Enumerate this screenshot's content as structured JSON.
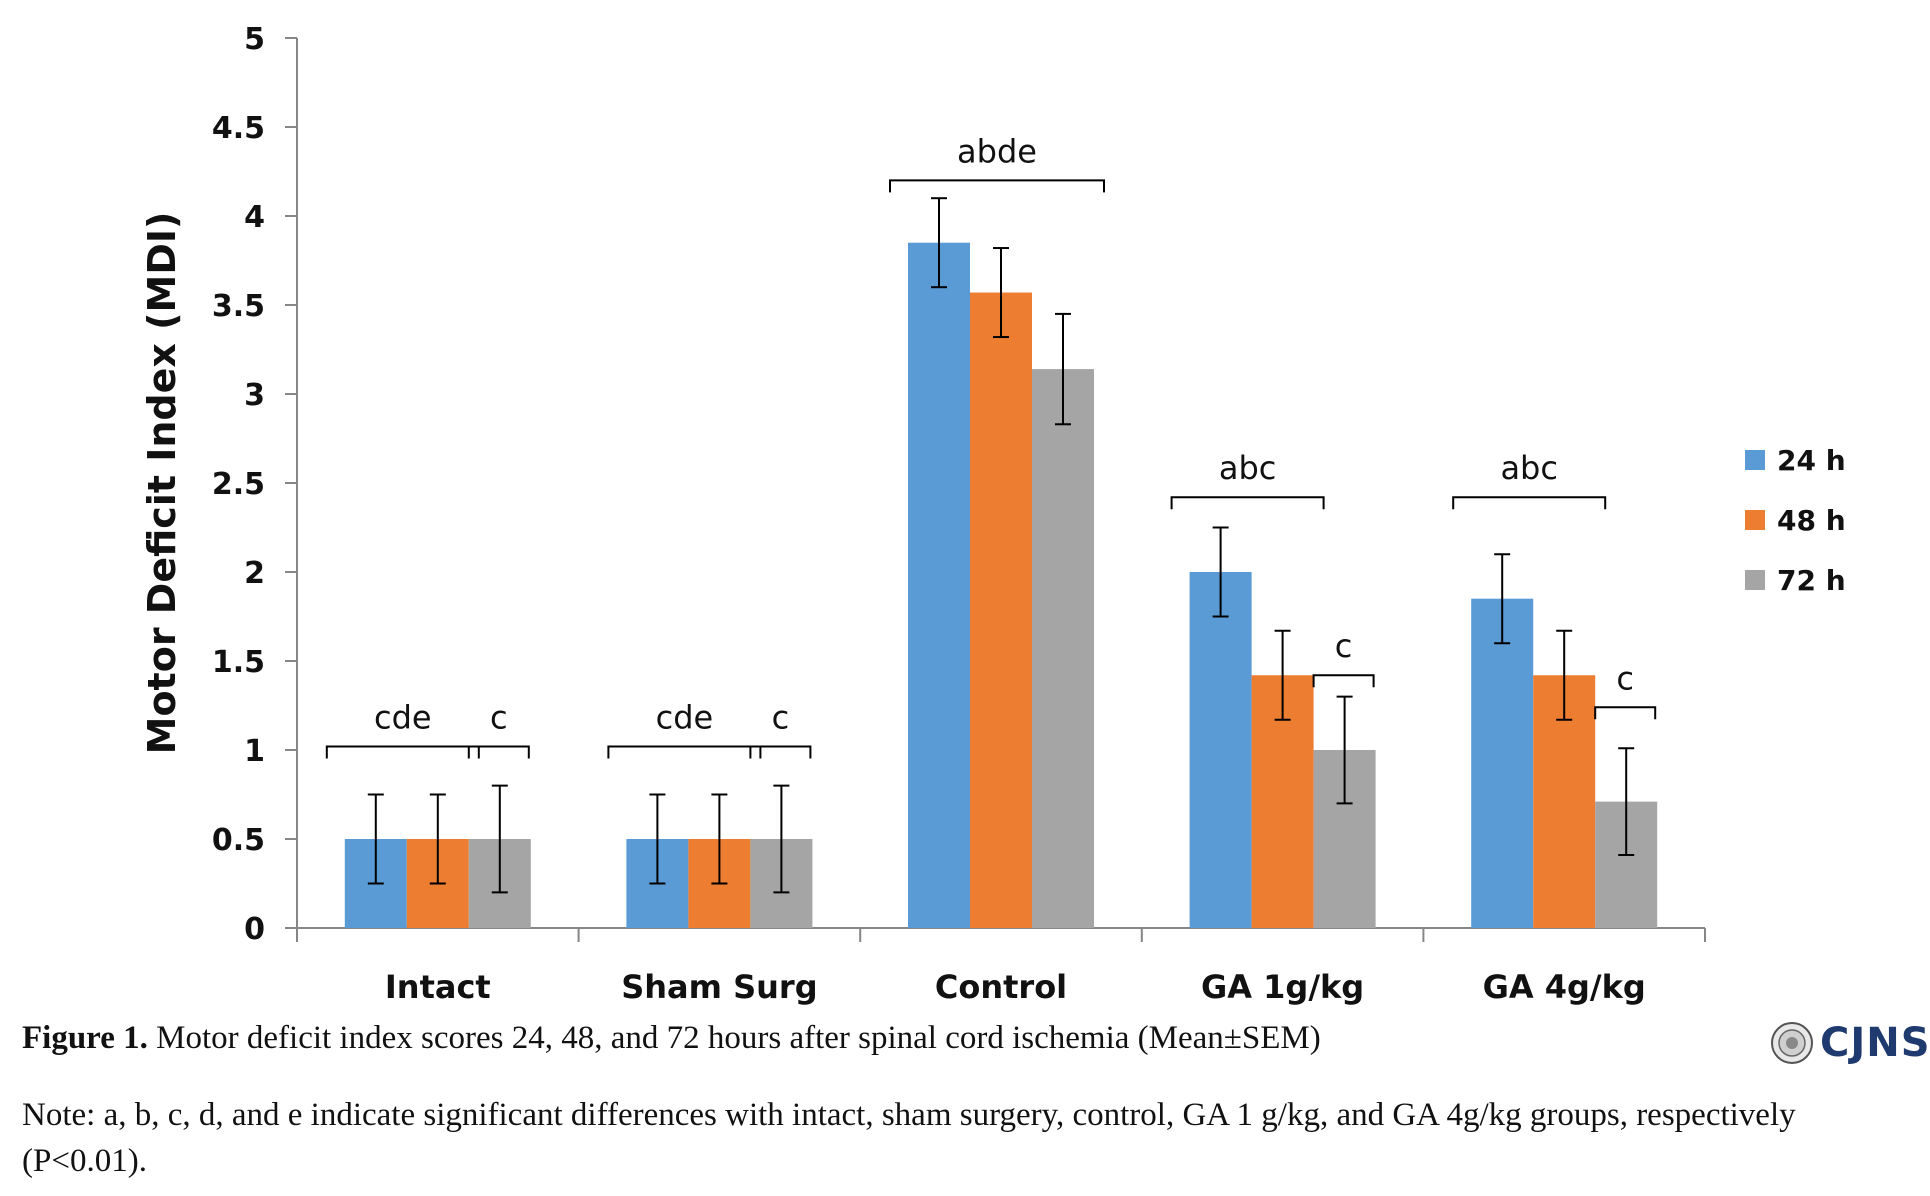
{
  "chart_data": {
    "type": "bar",
    "title": "",
    "xlabel": "",
    "ylabel": "Motor Deficit Index (MDI)",
    "ylim": [
      0,
      5
    ],
    "yticks": [
      "0",
      "0.5",
      "1",
      "1.5",
      "2",
      "2.5",
      "3",
      "3.5",
      "4",
      "4.5",
      "5"
    ],
    "grid": false,
    "legend_position": "right",
    "categories": [
      "Intact",
      "Sham Surg",
      "Control",
      "GA 1g/kg",
      "GA 4g/kg"
    ],
    "series": [
      {
        "name": "24 h",
        "color": "#5b9bd5",
        "values": [
          0.5,
          0.5,
          3.85,
          2.0,
          1.85
        ],
        "errors": [
          0.25,
          0.25,
          0.25,
          0.25,
          0.25
        ]
      },
      {
        "name": "48 h",
        "color": "#ed7d31",
        "values": [
          0.5,
          0.5,
          3.57,
          1.42,
          1.42
        ],
        "errors": [
          0.25,
          0.25,
          0.25,
          0.25,
          0.25
        ]
      },
      {
        "name": "72 h",
        "color": "#a5a5a5",
        "values": [
          0.5,
          0.5,
          3.14,
          1.0,
          0.71
        ],
        "errors": [
          0.3,
          0.3,
          0.31,
          0.3,
          0.3
        ]
      }
    ],
    "annotations": [
      {
        "category": 0,
        "from": 0,
        "to": 1,
        "text": "cde",
        "level": 1.02
      },
      {
        "category": 0,
        "from": 2,
        "to": 2,
        "text": "c",
        "level": 1.02
      },
      {
        "category": 1,
        "from": 0,
        "to": 1,
        "text": "cde",
        "level": 1.02
      },
      {
        "category": 1,
        "from": 2,
        "to": 2,
        "text": "c",
        "level": 1.02
      },
      {
        "category": 2,
        "from": 0,
        "to": 2,
        "text": "abde",
        "level": 4.2
      },
      {
        "category": 3,
        "from": 0,
        "to": 1,
        "text": "abc",
        "level": 2.42
      },
      {
        "category": 3,
        "from": 2,
        "to": 2,
        "text": "c",
        "level": 1.42
      },
      {
        "category": 4,
        "from": 0,
        "to": 1,
        "text": "abc",
        "level": 2.42
      },
      {
        "category": 4,
        "from": 2,
        "to": 2,
        "text": "c",
        "level": 1.24
      }
    ]
  },
  "caption": {
    "label": "Figure 1.",
    "text": " Motor deficit index scores 24, 48, and 72 hours after spinal cord ischemia (Mean±SEM)"
  },
  "note": "Note: a, b, c, d, and e indicate significant differences with intact, sham surgery, control, GA 1 g/kg, and GA 4g/kg groups, respectively (P<0.01).",
  "logo": {
    "text": "CJNS",
    "color": "#1e3a6e"
  }
}
